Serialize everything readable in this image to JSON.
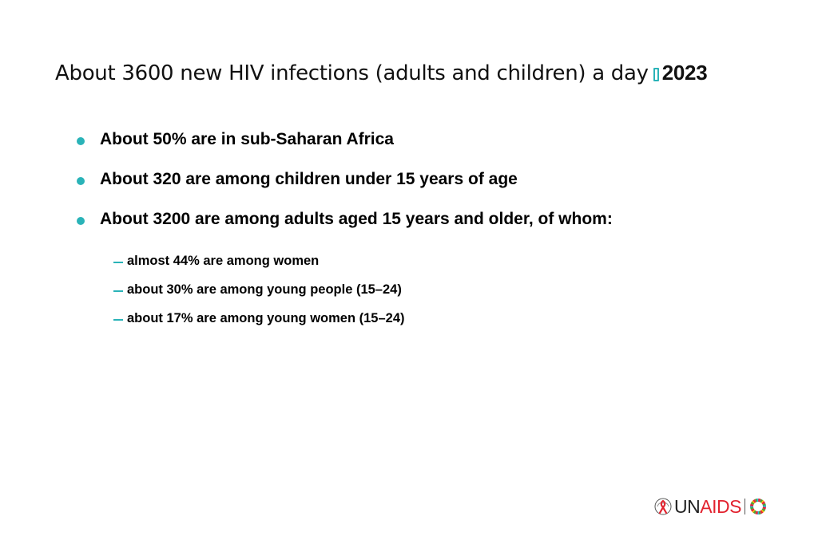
{
  "slide": {
    "title_text": "About 3600 new HIV infections (adults and children) a day",
    "title_year": "2023",
    "bullets": [
      {
        "text": "About 50% are in sub-Saharan Africa"
      },
      {
        "text": "About 320 are among children under 15 years of age"
      },
      {
        "text": "About 3200 are among adults aged 15 years and older, of whom:"
      }
    ],
    "sub_bullets": [
      {
        "text": "almost 44% are among women"
      },
      {
        "text": "about 30% are among young people (15–24)"
      },
      {
        "text": "about 17% are among young women (15–24)"
      }
    ]
  },
  "logo": {
    "un": "UN",
    "aids": "AIDS"
  },
  "colors": {
    "accent": "#2ab3b8",
    "brand_red": "#e2232f",
    "text": "#000000",
    "background": "#ffffff"
  },
  "icons": {
    "title_glyph": "missing-glyph-box-icon",
    "bullet": "bullet-dot-icon",
    "sub_bullet": "dash-icon",
    "logo_ribbon": "red-ribbon-icon",
    "logo_wheel": "sdg-wheel-icon"
  }
}
